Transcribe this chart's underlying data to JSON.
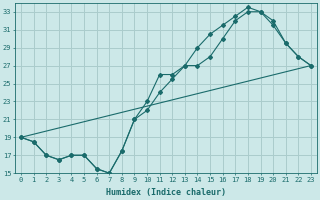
{
  "title": "",
  "xlabel": "Humidex (Indice chaleur)",
  "background_color": "#cce8e8",
  "grid_color": "#aacccc",
  "line_color": "#1a6b6b",
  "xlim": [
    -0.5,
    23.5
  ],
  "ylim": [
    15,
    34
  ],
  "xticks": [
    0,
    1,
    2,
    3,
    4,
    5,
    6,
    7,
    8,
    9,
    10,
    11,
    12,
    13,
    14,
    15,
    16,
    17,
    18,
    19,
    20,
    21,
    22,
    23
  ],
  "yticks": [
    15,
    17,
    19,
    21,
    23,
    25,
    27,
    29,
    31,
    33
  ],
  "line1_x": [
    0,
    1,
    2,
    3,
    4,
    5,
    6,
    7,
    8,
    9,
    10,
    11,
    12,
    13,
    14,
    15,
    16,
    17,
    18,
    19,
    20,
    21,
    22,
    23
  ],
  "line1_y": [
    19,
    18.5,
    17,
    16.5,
    17,
    17,
    15.5,
    15,
    17.5,
    21,
    23,
    26,
    26,
    27,
    27,
    28,
    30,
    32,
    33,
    33,
    32,
    29.5,
    28,
    27
  ],
  "line2_x": [
    0,
    1,
    2,
    3,
    4,
    5,
    6,
    7,
    8,
    9,
    10,
    11,
    12,
    13,
    14,
    15,
    16,
    17,
    18,
    19,
    20,
    21,
    22,
    23
  ],
  "line2_y": [
    19,
    18.5,
    17,
    16.5,
    17,
    17,
    15.5,
    15,
    17.5,
    21,
    22,
    24,
    25.5,
    27,
    29,
    30.5,
    31.5,
    32.5,
    33.5,
    33,
    31.5,
    29.5,
    28,
    27
  ],
  "line3_x": [
    0,
    23
  ],
  "line3_y": [
    19,
    27
  ]
}
